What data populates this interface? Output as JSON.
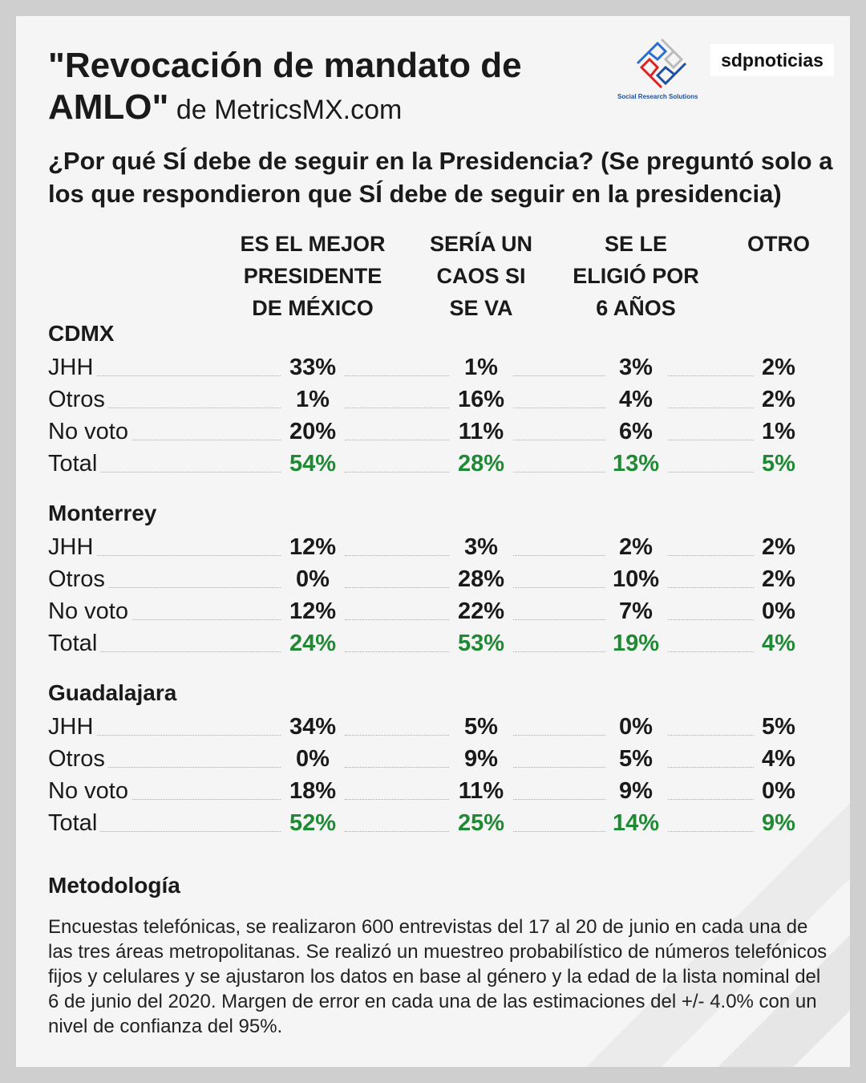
{
  "header": {
    "title_bold": "\"Revocación de mandato de AMLO\"",
    "title_light": " de MetricsMX.com",
    "logo_srs": "Social Research Solutions",
    "logo_sdp": "sdpnoticias"
  },
  "question": "¿Por qué SÍ debe de seguir en la Presidencia? (Se preguntó solo a los que respondieron que SÍ debe de seguir en la presidencia)",
  "colors": {
    "total": "#1f8a33",
    "text": "#1a1a1a",
    "background": "#f5f5f5"
  },
  "chart_data": {
    "type": "table",
    "columns": [
      "ES EL MEJOR\nPRESIDENTE\nDE MÉXICO",
      "SERÍA UN\nCAOS SI\nSE VA",
      "SE  LE\nELIGIÓ POR\n6 AÑOS",
      "OTRO"
    ],
    "sections": [
      {
        "name": "CDMX",
        "rows": [
          {
            "label": "JHH",
            "values": [
              "33%",
              "1%",
              "3%",
              "2%"
            ]
          },
          {
            "label": "Otros",
            "values": [
              "1%",
              "16%",
              "4%",
              "2%"
            ]
          },
          {
            "label": "No voto",
            "values": [
              "20%",
              "11%",
              "6%",
              "1%"
            ]
          },
          {
            "label": "Total",
            "values": [
              "54%",
              "28%",
              "13%",
              "5%"
            ],
            "total": true
          }
        ]
      },
      {
        "name": "Monterrey",
        "rows": [
          {
            "label": "JHH",
            "values": [
              "12%",
              "3%",
              "2%",
              "2%"
            ]
          },
          {
            "label": "Otros",
            "values": [
              "0%",
              "28%",
              "10%",
              "2%"
            ]
          },
          {
            "label": "No voto",
            "values": [
              "12%",
              "22%",
              "7%",
              "0%"
            ]
          },
          {
            "label": "Total",
            "values": [
              "24%",
              "53%",
              "19%",
              "4%"
            ],
            "total": true
          }
        ]
      },
      {
        "name": "Guadalajara",
        "rows": [
          {
            "label": "JHH",
            "values": [
              "34%",
              "5%",
              "0%",
              "5%"
            ]
          },
          {
            "label": "Otros",
            "values": [
              "0%",
              "9%",
              "5%",
              "4%"
            ]
          },
          {
            "label": "No voto",
            "values": [
              "18%",
              "11%",
              "9%",
              "0%"
            ]
          },
          {
            "label": "Total",
            "values": [
              "52%",
              "25%",
              "14%",
              "9%"
            ],
            "total": true
          }
        ]
      }
    ]
  },
  "methodology": {
    "heading": "Metodología",
    "text": "Encuestas telefónicas, se realizaron 600 entrevistas del 17 al 20 de junio en cada una de las tres áreas metropolitanas. Se realizó un muestreo probabilístico de números telefónicos fijos y celulares y se ajustaron los datos en base al género y la edad de la lista nominal del 6 de junio del 2020. Margen de error en cada una de las estimaciones del +/- 4.0% con un nivel de confianza del 95%."
  }
}
